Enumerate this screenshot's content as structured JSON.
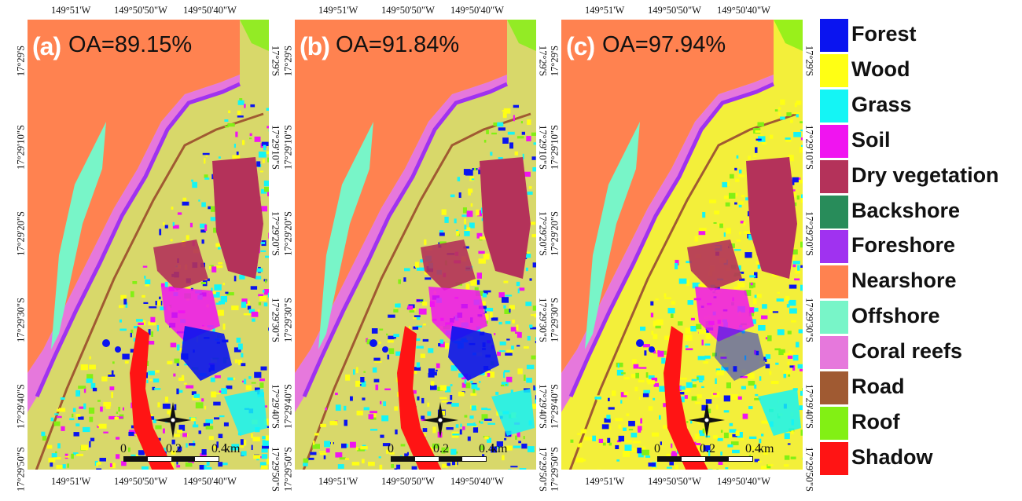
{
  "panels": [
    {
      "tag": "(a)",
      "oa": "OA=89.15%"
    },
    {
      "tag": "(b)",
      "oa": "OA=91.84%"
    },
    {
      "tag": "(c)",
      "oa": "OA=97.94%"
    }
  ],
  "axes": {
    "lon_labels": [
      "149°51'W",
      "149°50'50\"W",
      "149°50'40\"W"
    ],
    "lat_labels_left": [
      "17°29'S",
      "17°29'10\"S",
      "17°29'20\"S",
      "17°29'30\"S",
      "17°29'40\"S",
      "17°29'50\"S"
    ],
    "lat_labels_right": [
      "17°29'S",
      "17°29'10\"S",
      "17°29'20\"S",
      "17°29'30\"S",
      "17°29'40\"S",
      "17°29'50\"S"
    ]
  },
  "scale_bar": {
    "ticks": [
      "0",
      "0.2",
      "0.4"
    ],
    "unit": "km"
  },
  "legend": [
    {
      "label": "Forest",
      "color": "#0a14f0"
    },
    {
      "label": "Wood",
      "color": "#ffff14"
    },
    {
      "label": "Grass",
      "color": "#14f5f5"
    },
    {
      "label": "Soil",
      "color": "#f014f0"
    },
    {
      "label": "Dry vegetation",
      "color": "#b4325a"
    },
    {
      "label": "Backshore",
      "color": "#288c5a"
    },
    {
      "label": "Foreshore",
      "color": "#a032f0"
    },
    {
      "label": "Nearshore",
      "color": "#ff8250"
    },
    {
      "label": "Offshore",
      "color": "#78f5c8"
    },
    {
      "label": "Coral reefs",
      "color": "#e678dc"
    },
    {
      "label": "Road",
      "color": "#a05a32"
    },
    {
      "label": "Roof",
      "color": "#82f014"
    },
    {
      "label": "Shadow",
      "color": "#ff1414"
    }
  ],
  "north_arrow_icon": "north-arrow-icon"
}
